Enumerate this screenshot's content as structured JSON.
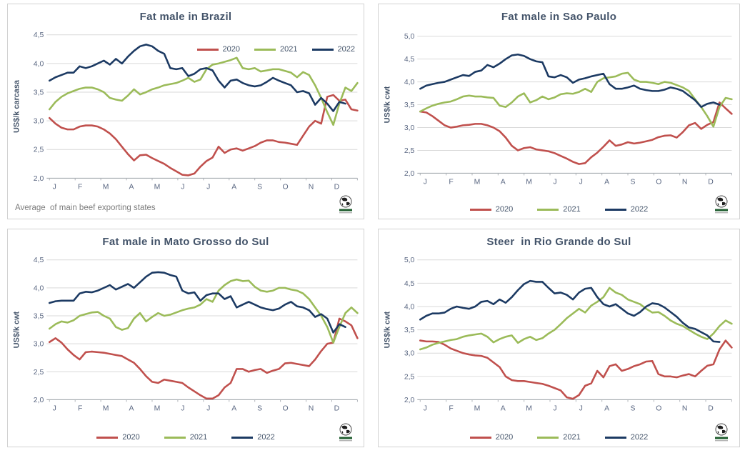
{
  "page": {
    "background": "#ffffff",
    "panel_border": "#d2d2d2"
  },
  "colors": {
    "title": "#44546a",
    "axis_text": "#5a6782",
    "gridline": "#d9d9d9",
    "axis_line": "#9aa0a6",
    "series_2020": "#C0504D",
    "series_2021": "#9BBB59",
    "series_2022": "#1C3A63"
  },
  "icons": {
    "panel_logo": "globe-logo"
  },
  "chart_data": [
    {
      "type": "line",
      "title": "Fat male in Brazil",
      "ylabel": "US$/k carcasa",
      "ylim": [
        2.0,
        4.5
      ],
      "yticks": [
        "2,0",
        "2,5",
        "3,0",
        "3,5",
        "4,0",
        "4,5"
      ],
      "x_months": [
        "J",
        "F",
        "M",
        "A",
        "M",
        "J",
        "J",
        "A",
        "S",
        "O",
        "N",
        "D"
      ],
      "grid": true,
      "legend_position": "inside-top-right",
      "footnote": "Average  of main beef exporting states",
      "series": [
        {
          "name": "2020",
          "color": "#C0504D",
          "values": [
            3.05,
            2.95,
            2.88,
            2.85,
            2.85,
            2.9,
            2.92,
            2.92,
            2.9,
            2.85,
            2.78,
            2.68,
            2.55,
            2.42,
            2.31,
            2.4,
            2.41,
            2.35,
            2.3,
            2.25,
            2.18,
            2.12,
            2.06,
            2.05,
            2.08,
            2.2,
            2.3,
            2.36,
            2.55,
            2.44,
            2.5,
            2.52,
            2.48,
            2.52,
            2.56,
            2.62,
            2.66,
            2.66,
            2.63,
            2.62,
            2.6,
            2.58,
            2.74,
            2.9,
            3.0,
            2.95,
            3.42,
            3.45,
            3.35,
            3.37,
            3.2,
            3.18
          ]
        },
        {
          "name": "2021",
          "color": "#9BBB59",
          "values": [
            3.2,
            3.33,
            3.42,
            3.48,
            3.52,
            3.56,
            3.58,
            3.58,
            3.55,
            3.5,
            3.4,
            3.37,
            3.35,
            3.44,
            3.55,
            3.46,
            3.5,
            3.55,
            3.58,
            3.62,
            3.64,
            3.66,
            3.7,
            3.75,
            3.68,
            3.72,
            3.9,
            3.98,
            4.0,
            4.03,
            4.06,
            4.1,
            3.92,
            3.9,
            3.92,
            3.86,
            3.88,
            3.9,
            3.9,
            3.87,
            3.84,
            3.76,
            3.85,
            3.8,
            3.62,
            3.4,
            3.15,
            2.93,
            3.3,
            3.58,
            3.52,
            3.66
          ]
        },
        {
          "name": "2022",
          "color": "#1C3A63",
          "values": [
            3.7,
            3.76,
            3.8,
            3.84,
            3.84,
            3.95,
            3.92,
            3.95,
            4.0,
            4.05,
            3.98,
            4.08,
            4.0,
            4.12,
            4.22,
            4.3,
            4.33,
            4.3,
            4.22,
            4.17,
            3.92,
            3.9,
            3.92,
            3.78,
            3.82,
            3.9,
            3.92,
            3.88,
            3.7,
            3.58,
            3.7,
            3.72,
            3.66,
            3.62,
            3.6,
            3.62,
            3.68,
            3.75,
            3.7,
            3.66,
            3.62,
            3.5,
            3.52,
            3.48,
            3.28,
            3.4,
            3.3,
            3.17,
            3.33,
            3.3
          ]
        }
      ]
    },
    {
      "type": "line",
      "title": "Fat male in Sao Paulo",
      "ylabel": "US$/k cwt",
      "ylim": [
        2.0,
        5.0
      ],
      "yticks": [
        "2,0",
        "2,5",
        "3,0",
        "3,5",
        "4,0",
        "4,5",
        "5,0"
      ],
      "x_months": [
        "J",
        "F",
        "M",
        "A",
        "M",
        "J",
        "J",
        "A",
        "S",
        "O",
        "N",
        "D"
      ],
      "grid": true,
      "legend_position": "bottom",
      "series": [
        {
          "name": "2020",
          "color": "#C0504D",
          "values": [
            3.35,
            3.33,
            3.25,
            3.15,
            3.05,
            3.0,
            3.02,
            3.05,
            3.06,
            3.08,
            3.08,
            3.05,
            3.0,
            2.92,
            2.78,
            2.6,
            2.5,
            2.55,
            2.57,
            2.52,
            2.5,
            2.48,
            2.44,
            2.38,
            2.32,
            2.25,
            2.2,
            2.22,
            2.35,
            2.45,
            2.58,
            2.72,
            2.6,
            2.63,
            2.68,
            2.65,
            2.67,
            2.7,
            2.73,
            2.79,
            2.82,
            2.83,
            2.78,
            2.9,
            3.05,
            3.1,
            2.97,
            3.06,
            3.12,
            3.55,
            3.42,
            3.3
          ]
        },
        {
          "name": "2021",
          "color": "#9BBB59",
          "values": [
            3.35,
            3.42,
            3.48,
            3.52,
            3.55,
            3.57,
            3.62,
            3.68,
            3.7,
            3.68,
            3.68,
            3.66,
            3.65,
            3.48,
            3.45,
            3.55,
            3.68,
            3.75,
            3.55,
            3.6,
            3.68,
            3.62,
            3.66,
            3.73,
            3.75,
            3.74,
            3.78,
            3.85,
            3.78,
            4.0,
            4.08,
            4.1,
            4.12,
            4.18,
            4.2,
            4.05,
            4.0,
            4.0,
            3.98,
            3.95,
            4.0,
            3.98,
            3.93,
            3.88,
            3.8,
            3.62,
            3.45,
            3.25,
            3.02,
            3.45,
            3.65,
            3.62
          ]
        },
        {
          "name": "2022",
          "color": "#1C3A63",
          "values": [
            3.85,
            3.92,
            3.95,
            3.98,
            4.0,
            4.05,
            4.1,
            4.15,
            4.13,
            4.22,
            4.25,
            4.37,
            4.32,
            4.4,
            4.5,
            4.58,
            4.6,
            4.57,
            4.5,
            4.45,
            4.43,
            4.12,
            4.1,
            4.15,
            4.1,
            3.98,
            4.05,
            4.08,
            4.12,
            4.15,
            4.18,
            3.95,
            3.85,
            3.85,
            3.88,
            3.92,
            3.85,
            3.82,
            3.8,
            3.8,
            3.83,
            3.88,
            3.85,
            3.8,
            3.7,
            3.6,
            3.45,
            3.52,
            3.55,
            3.5
          ]
        }
      ]
    },
    {
      "type": "line",
      "title": "Fat male in Mato Grosso do Sul",
      "ylabel": "US$/k cwt",
      "ylim": [
        2.0,
        4.5
      ],
      "yticks": [
        "2,0",
        "2,5",
        "3,0",
        "3,5",
        "4,0",
        "4,5"
      ],
      "x_months": [
        "J",
        "F",
        "M",
        "A",
        "M",
        "J",
        "J",
        "A",
        "S",
        "O",
        "N",
        "D"
      ],
      "grid": true,
      "legend_position": "bottom",
      "series": [
        {
          "name": "2020",
          "color": "#C0504D",
          "values": [
            3.03,
            3.1,
            3.02,
            2.9,
            2.8,
            2.72,
            2.85,
            2.86,
            2.85,
            2.84,
            2.82,
            2.8,
            2.78,
            2.72,
            2.66,
            2.55,
            2.42,
            2.32,
            2.3,
            2.36,
            2.34,
            2.32,
            2.3,
            2.22,
            2.15,
            2.08,
            2.02,
            2.02,
            2.08,
            2.22,
            2.3,
            2.55,
            2.55,
            2.5,
            2.53,
            2.55,
            2.48,
            2.52,
            2.55,
            2.65,
            2.66,
            2.64,
            2.62,
            2.6,
            2.72,
            2.87,
            3.0,
            3.02,
            3.45,
            3.4,
            3.33,
            3.1
          ]
        },
        {
          "name": "2021",
          "color": "#9BBB59",
          "values": [
            3.27,
            3.35,
            3.4,
            3.38,
            3.42,
            3.5,
            3.53,
            3.56,
            3.57,
            3.5,
            3.45,
            3.3,
            3.25,
            3.28,
            3.45,
            3.55,
            3.4,
            3.48,
            3.55,
            3.5,
            3.52,
            3.56,
            3.6,
            3.63,
            3.65,
            3.7,
            3.8,
            3.75,
            3.95,
            4.05,
            4.12,
            4.15,
            4.12,
            4.13,
            4.02,
            3.95,
            3.93,
            3.95,
            4.0,
            4.0,
            3.97,
            3.95,
            3.9,
            3.8,
            3.65,
            3.5,
            3.3,
            3.02,
            3.3,
            3.55,
            3.65,
            3.55
          ]
        },
        {
          "name": "2022",
          "color": "#1C3A63",
          "values": [
            3.73,
            3.76,
            3.77,
            3.77,
            3.77,
            3.9,
            3.93,
            3.92,
            3.95,
            4.0,
            4.05,
            3.97,
            4.02,
            4.07,
            4.0,
            4.1,
            4.2,
            4.27,
            4.28,
            4.27,
            4.23,
            4.2,
            3.95,
            3.9,
            3.92,
            3.77,
            3.87,
            3.9,
            3.9,
            3.8,
            3.85,
            3.65,
            3.7,
            3.75,
            3.7,
            3.65,
            3.62,
            3.6,
            3.63,
            3.7,
            3.75,
            3.67,
            3.65,
            3.6,
            3.48,
            3.53,
            3.45,
            3.2,
            3.35,
            3.3
          ]
        }
      ]
    },
    {
      "type": "line",
      "title": "Steer  in Rio Grande do Sul",
      "ylabel": "US$/k cwt",
      "ylim": [
        2.0,
        5.0
      ],
      "yticks": [
        "2,0",
        "2,5",
        "3,0",
        "3,5",
        "4,0",
        "4,5",
        "5,0"
      ],
      "x_months": [
        "J",
        "F",
        "M",
        "A",
        "M",
        "J",
        "J",
        "A",
        "S",
        "O",
        "N",
        "D"
      ],
      "grid": true,
      "legend_position": "bottom",
      "series": [
        {
          "name": "2020",
          "color": "#C0504D",
          "values": [
            3.27,
            3.25,
            3.25,
            3.24,
            3.18,
            3.1,
            3.05,
            3.0,
            2.97,
            2.95,
            2.94,
            2.9,
            2.8,
            2.7,
            2.5,
            2.42,
            2.4,
            2.4,
            2.38,
            2.36,
            2.34,
            2.3,
            2.25,
            2.2,
            2.05,
            2.02,
            2.1,
            2.3,
            2.35,
            2.62,
            2.48,
            2.72,
            2.76,
            2.62,
            2.66,
            2.72,
            2.76,
            2.82,
            2.83,
            2.55,
            2.5,
            2.5,
            2.48,
            2.52,
            2.55,
            2.5,
            2.62,
            2.73,
            2.76,
            3.08,
            3.27,
            3.12
          ]
        },
        {
          "name": "2021",
          "color": "#9BBB59",
          "values": [
            3.08,
            3.12,
            3.18,
            3.22,
            3.25,
            3.28,
            3.3,
            3.35,
            3.38,
            3.4,
            3.42,
            3.35,
            3.23,
            3.3,
            3.35,
            3.38,
            3.22,
            3.3,
            3.35,
            3.28,
            3.32,
            3.42,
            3.5,
            3.62,
            3.75,
            3.85,
            3.95,
            3.87,
            4.02,
            4.1,
            4.2,
            4.4,
            4.3,
            4.25,
            4.15,
            4.1,
            4.05,
            3.95,
            3.87,
            3.88,
            3.8,
            3.7,
            3.63,
            3.58,
            3.5,
            3.42,
            3.35,
            3.3,
            3.42,
            3.58,
            3.7,
            3.63
          ]
        },
        {
          "name": "2022",
          "color": "#1C3A63",
          "values": [
            3.72,
            3.8,
            3.85,
            3.85,
            3.87,
            3.95,
            4.0,
            3.97,
            3.95,
            4.0,
            4.1,
            4.12,
            4.05,
            4.15,
            4.08,
            4.2,
            4.35,
            4.48,
            4.55,
            4.53,
            4.53,
            4.4,
            4.28,
            4.3,
            4.25,
            4.15,
            4.3,
            4.38,
            4.4,
            4.2,
            4.05,
            4.0,
            4.05,
            3.95,
            3.85,
            3.8,
            3.88,
            4.0,
            4.07,
            4.05,
            3.98,
            3.88,
            3.78,
            3.65,
            3.55,
            3.52,
            3.45,
            3.38,
            3.25,
            3.24
          ]
        }
      ]
    }
  ]
}
